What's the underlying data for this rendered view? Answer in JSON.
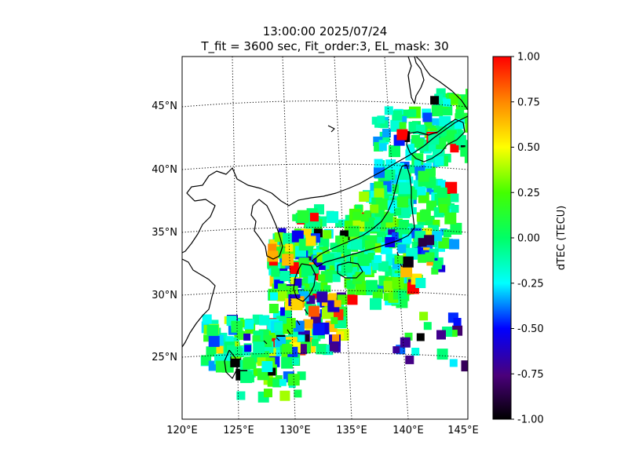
{
  "title_line1": "13:00:00 2025/07/24",
  "title_line2": "T_fit = 3600 sec, Fit_order:3, EL_mask: 30",
  "colorbar": {
    "label": "dTEC (TECU)",
    "range": [
      -1.0,
      1.0
    ],
    "ticks": [
      "1.00",
      "0.75",
      "0.50",
      "0.25",
      "0.00",
      "-0.25",
      "-0.50",
      "-0.75",
      "-1.00"
    ]
  },
  "chart_data": {
    "type": "heatmap",
    "title": "13:00:00 2025/07/24",
    "subtitle": "T_fit = 3600 sec, Fit_order:3, EL_mask: 30",
    "colorbar_label": "dTEC (TECU)",
    "value_range": [
      -1.0,
      1.0
    ],
    "lon_range": [
      120,
      145
    ],
    "lat_range": [
      20,
      49
    ],
    "lon_ticks": [
      "120°E",
      "125°E",
      "130°E",
      "135°E",
      "140°E",
      "145°E"
    ],
    "lat_ticks": [
      "25°N",
      "30°N",
      "35°N",
      "40°N",
      "45°N"
    ],
    "grid": "on"
  }
}
